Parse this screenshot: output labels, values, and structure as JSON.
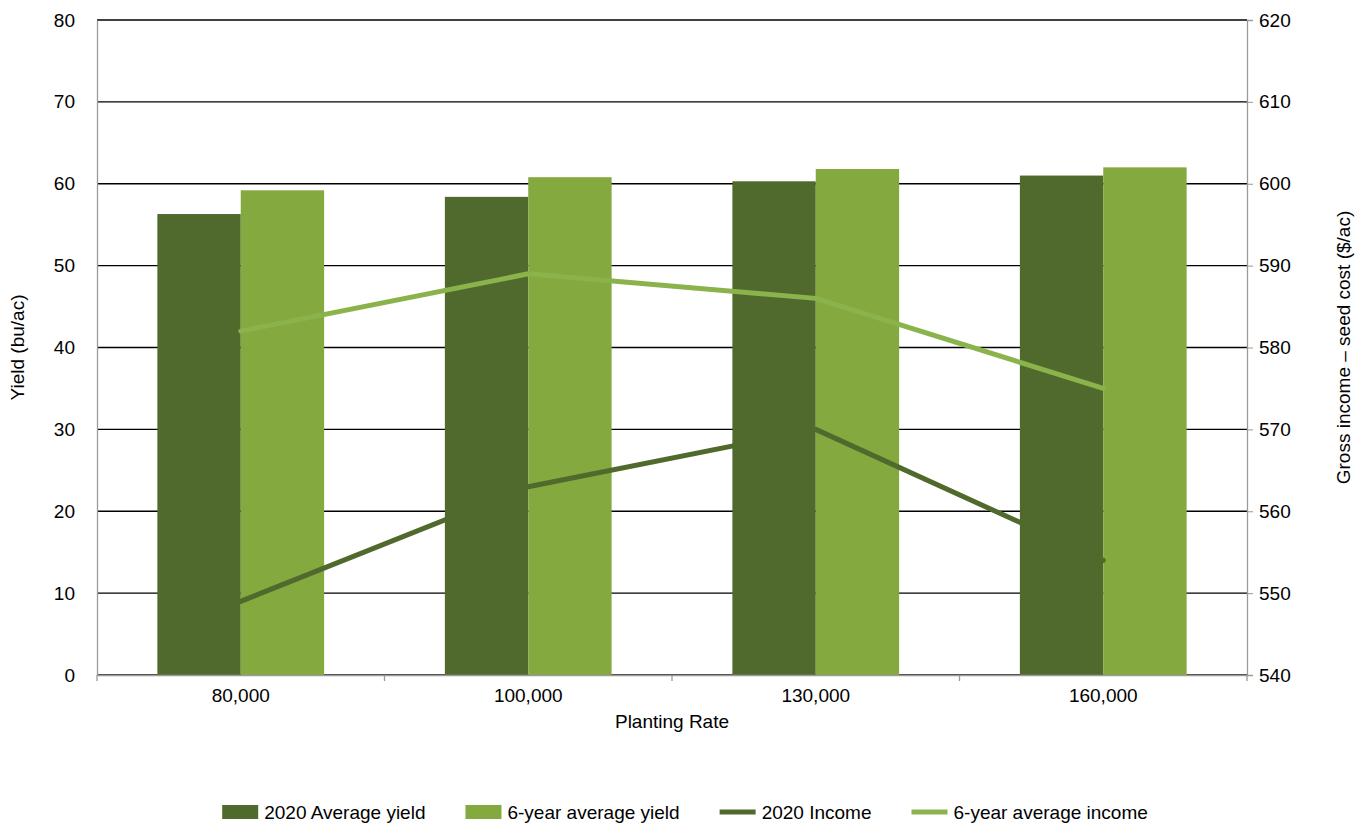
{
  "chart_data": {
    "type": "bar",
    "x_label": "Planting Rate",
    "y_label": "Yield (bu/ac)",
    "y2_label": "Gross income – seed cost ($/ac)",
    "categories": [
      "80,000",
      "100,000",
      "130,000",
      "160,000"
    ],
    "series": [
      {
        "name": "2020 Average yield",
        "type": "bar",
        "color": "#4f6a2c",
        "values": [
          56.3,
          58.4,
          60.3,
          61.0
        ]
      },
      {
        "name": "6-year average yield",
        "type": "bar",
        "color": "#84a93e",
        "values": [
          59.2,
          60.8,
          61.8,
          62.0
        ]
      },
      {
        "name": "2020 Income",
        "type": "line",
        "axis": "y2",
        "color": "#4f6a2c",
        "values": [
          549,
          563,
          570,
          554
        ]
      },
      {
        "name": "6-year average income",
        "type": "line",
        "axis": "y2",
        "color": "#8ab34c",
        "values": [
          582,
          589,
          586,
          575
        ]
      }
    ],
    "ylim": [
      0,
      80
    ],
    "yticks": [
      0,
      10,
      20,
      30,
      40,
      50,
      60,
      70,
      80
    ],
    "y2lim": [
      540,
      620
    ],
    "y2ticks": [
      540,
      550,
      560,
      570,
      580,
      590,
      600,
      610,
      620
    ],
    "grid": true,
    "legend": "bottom"
  }
}
